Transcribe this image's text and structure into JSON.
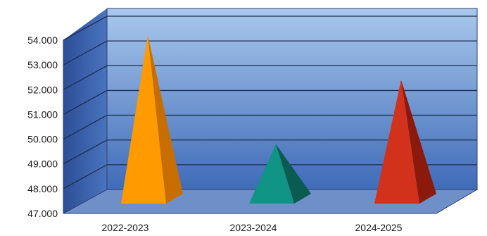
{
  "chart_data": {
    "type": "bar",
    "style": "3d-pyramid",
    "title": "",
    "xlabel": "",
    "ylabel": "",
    "categories": [
      "2022-2023",
      "2023-2024",
      "2024-2025"
    ],
    "values": [
      54.2,
      49.8,
      52.4
    ],
    "ylim": [
      47,
      54
    ],
    "yticks": [
      "47.000",
      "48.000",
      "49.000",
      "50.000",
      "51.000",
      "52.000",
      "53.000",
      "54.000"
    ],
    "grid": true,
    "legend": "none",
    "colors": {
      "bars": [
        "#ff9a00",
        "#0f9485",
        "#d2321c"
      ],
      "bars_shade": [
        "#c86e00",
        "#0a5c52",
        "#8c1a0c"
      ],
      "wall_top": "#a9c8ec",
      "wall_bottom": "#3f6bb8",
      "floor": "#6f8fc9",
      "side_wall": "#3a5fa8"
    }
  }
}
